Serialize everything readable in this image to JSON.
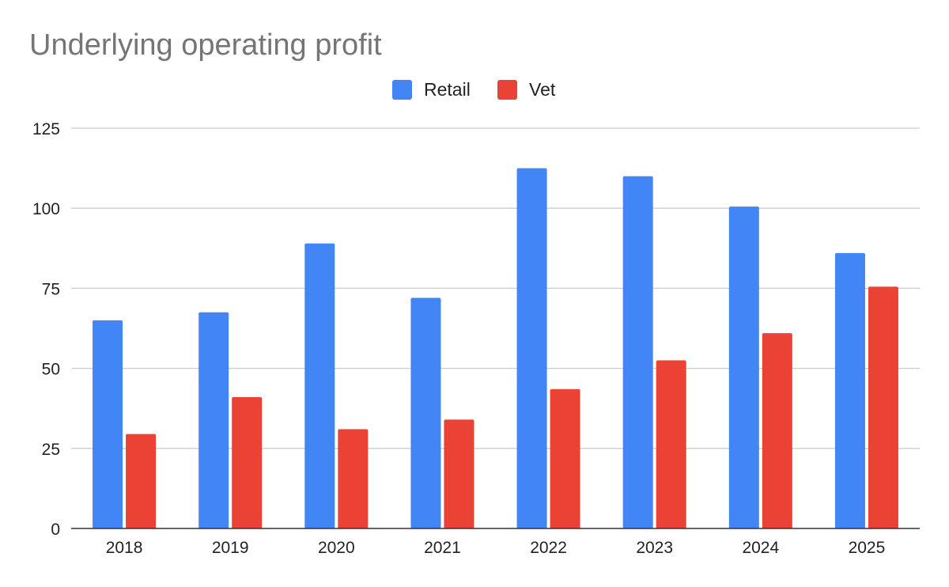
{
  "chart_data": {
    "type": "bar",
    "title": "Underlying operating profit",
    "xlabel": "",
    "ylabel": "",
    "categories": [
      "2018",
      "2019",
      "2020",
      "2021",
      "2022",
      "2023",
      "2024",
      "2025"
    ],
    "series": [
      {
        "name": "Retail",
        "color": "#4285F4",
        "values": [
          65,
          67.5,
          89,
          72,
          112.5,
          110,
          100.5,
          86
        ]
      },
      {
        "name": "Vet",
        "color": "#EA4335",
        "values": [
          29.5,
          41,
          31,
          34,
          43.5,
          52.5,
          61,
          75.5
        ]
      }
    ],
    "ylim": [
      0,
      125
    ],
    "yticks": [
      "0",
      "25",
      "50",
      "75",
      "100",
      "125"
    ],
    "grid": true,
    "legend": "top-center"
  }
}
